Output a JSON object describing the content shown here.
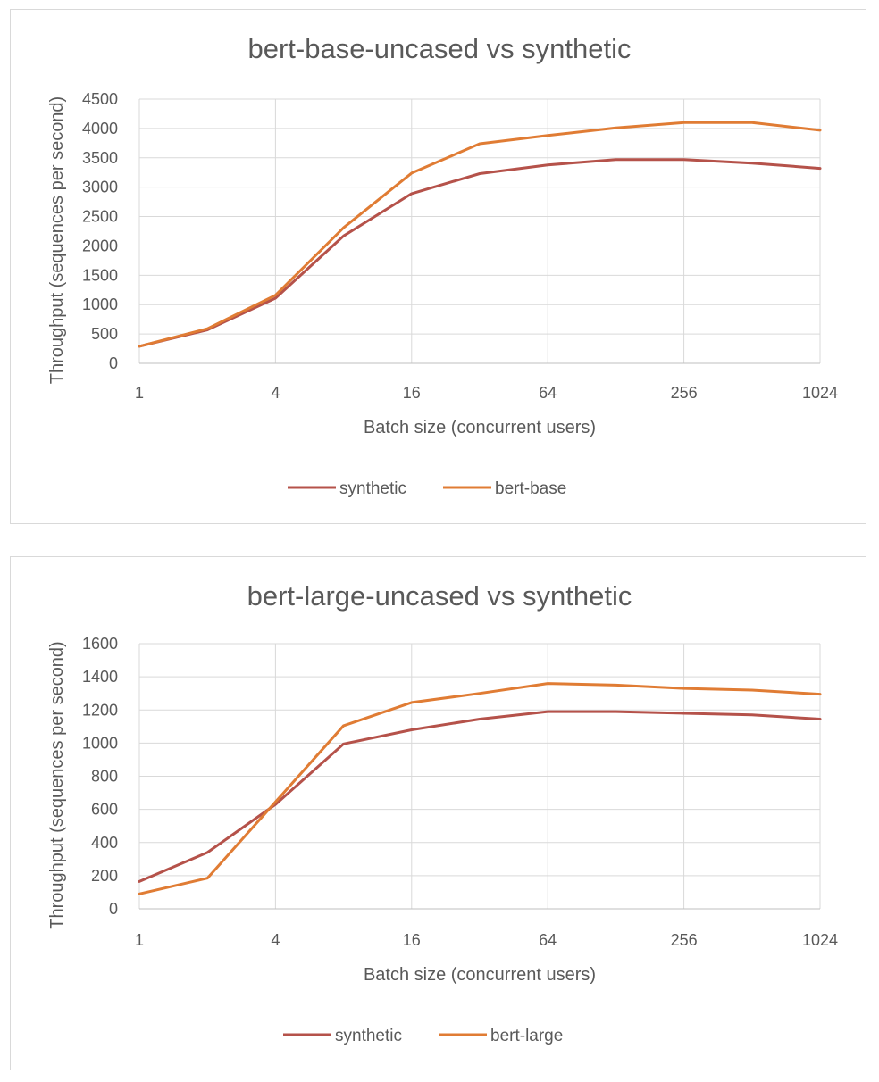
{
  "chart_data": [
    {
      "type": "line",
      "title": "bert-base-uncased vs synthetic",
      "xlabel": "Batch size (concurrent users)",
      "ylabel": "Throughput (sequences per second)",
      "x_scale": "log2",
      "x": [
        1,
        2,
        4,
        8,
        16,
        32,
        64,
        128,
        256,
        512,
        1024
      ],
      "x_tick_labels": [
        "1",
        "4",
        "16",
        "64",
        "256",
        "1024"
      ],
      "x_tick_values": [
        1,
        4,
        16,
        64,
        256,
        1024
      ],
      "ylim": [
        0,
        4500
      ],
      "y_ticks": [
        0,
        500,
        1000,
        1500,
        2000,
        2500,
        3000,
        3500,
        4000,
        4500
      ],
      "grid": true,
      "legend_position": "bottom",
      "series": [
        {
          "name": "synthetic",
          "color": "#b5524a",
          "values": [
            290,
            570,
            1110,
            2170,
            2890,
            3230,
            3380,
            3470,
            3470,
            3410,
            3320
          ]
        },
        {
          "name": "bert-base",
          "color": "#e07c34",
          "values": [
            290,
            590,
            1160,
            2310,
            3240,
            3740,
            3880,
            4010,
            4100,
            4100,
            3970
          ]
        }
      ]
    },
    {
      "type": "line",
      "title": "bert-large-uncased vs synthetic",
      "xlabel": "Batch size (concurrent users)",
      "ylabel": "Throughput (sequences per second)",
      "x_scale": "log2",
      "x": [
        1,
        2,
        4,
        8,
        16,
        32,
        64,
        128,
        256,
        512,
        1024
      ],
      "x_tick_labels": [
        "1",
        "4",
        "16",
        "64",
        "256",
        "1024"
      ],
      "x_tick_values": [
        1,
        4,
        16,
        64,
        256,
        1024
      ],
      "ylim": [
        0,
        1600
      ],
      "y_ticks": [
        0,
        200,
        400,
        600,
        800,
        1000,
        1200,
        1400,
        1600
      ],
      "grid": true,
      "legend_position": "bottom",
      "series": [
        {
          "name": "synthetic",
          "color": "#b5524a",
          "values": [
            165,
            340,
            630,
            995,
            1080,
            1145,
            1190,
            1190,
            1180,
            1170,
            1145
          ]
        },
        {
          "name": "bert-large",
          "color": "#e07c34",
          "values": [
            90,
            185,
            645,
            1105,
            1245,
            1300,
            1360,
            1350,
            1330,
            1320,
            1295
          ]
        }
      ]
    }
  ]
}
